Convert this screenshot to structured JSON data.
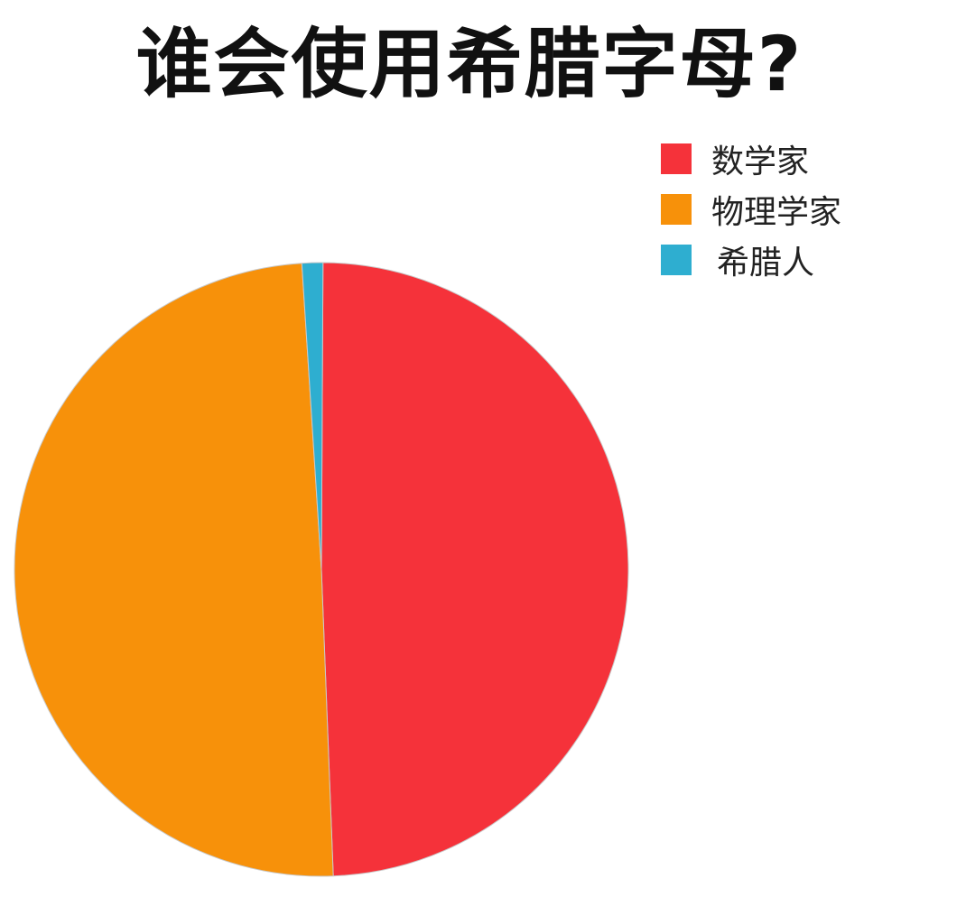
{
  "chart_data": {
    "type": "pie",
    "title": "谁会使用希腊字母?",
    "legend_position": "top-right",
    "slices": [
      {
        "label": "数学家",
        "value": 49.3,
        "color": "#f5323a"
      },
      {
        "label": "物理学家",
        "value": 49.6,
        "color": "#f7910a"
      },
      {
        "label": "希腊人",
        "value": 1.1,
        "color": "#2eaed0"
      }
    ]
  }
}
